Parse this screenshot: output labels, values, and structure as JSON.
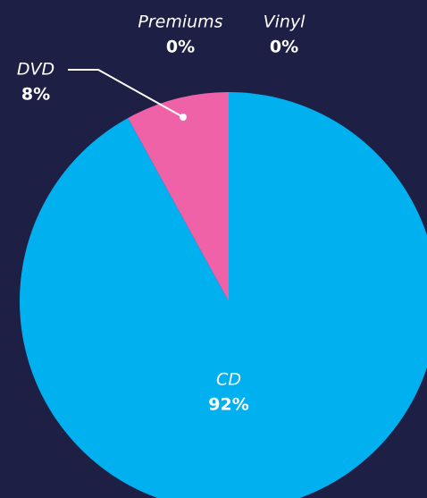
{
  "chart_data": {
    "type": "pie",
    "categories": [
      "CD",
      "DVD",
      "Premiums",
      "Vinyl"
    ],
    "values": [
      92,
      8,
      0,
      0
    ],
    "value_labels": [
      "92%",
      "8%",
      "0%",
      "0%"
    ],
    "colors": [
      "#00b0ef",
      "#f062a8",
      "#8e5fb0",
      "#f4c430"
    ]
  }
}
